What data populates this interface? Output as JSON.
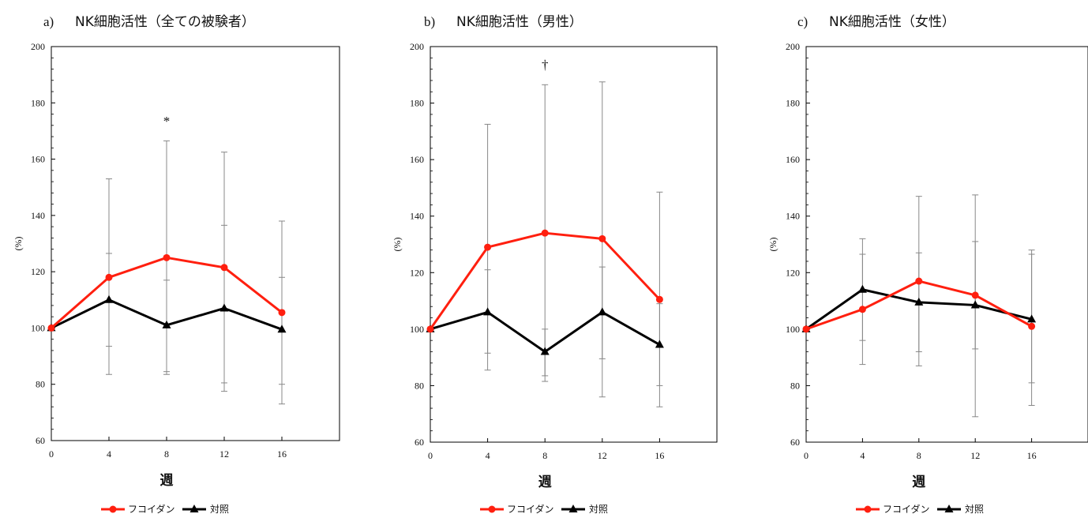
{
  "colors": {
    "fucoidan": "#ff1f0f",
    "control": "#000000",
    "error_bar": "#888888",
    "frame": "#000000"
  },
  "legend": {
    "fucoidan_label": "フコイダン",
    "control_label": "対照",
    "placement": "bottom-center"
  },
  "chart_data": [
    {
      "type": "line",
      "panel_letter": "a)",
      "title": "NK細胞活性（全ての被験者）",
      "xlabel": "週",
      "ylabel": "(%)",
      "xlim": [
        0,
        20
      ],
      "ylim": [
        60,
        200
      ],
      "x": [
        0,
        4,
        8,
        12,
        16
      ],
      "x_ticks": [
        "0",
        "4",
        "8",
        "12",
        "16"
      ],
      "y_ticks": [
        "60",
        "80",
        "100",
        "120",
        "140",
        "160",
        "180",
        "200"
      ],
      "annotations": [
        {
          "text": "*",
          "x": 8,
          "y": 172
        }
      ],
      "series": [
        {
          "name": "フコイダン",
          "marker": "circle",
          "values": [
            100,
            118,
            125,
            121.5,
            105.5
          ],
          "err_low": [
            100,
            93.5,
            83.5,
            80.5,
            73
          ],
          "err_high": [
            100,
            153,
            166.5,
            162.5,
            138
          ]
        },
        {
          "name": "対照",
          "marker": "triangle",
          "values": [
            100,
            110,
            101,
            107,
            99.5
          ],
          "err_low": [
            100,
            83.5,
            84.5,
            77.5,
            80
          ],
          "err_high": [
            100,
            126.5,
            117,
            136.5,
            118
          ]
        }
      ]
    },
    {
      "type": "line",
      "panel_letter": "b)",
      "title": "NK細胞活性（男性）",
      "xlabel": "週",
      "ylabel": "(%)",
      "xlim": [
        0,
        20
      ],
      "ylim": [
        60,
        200
      ],
      "x": [
        0,
        4,
        8,
        12,
        16
      ],
      "x_ticks": [
        "0",
        "4",
        "8",
        "12",
        "16"
      ],
      "y_ticks": [
        "60",
        "80",
        "100",
        "120",
        "140",
        "160",
        "180",
        "200"
      ],
      "annotations": [
        {
          "text": "†",
          "x": 8,
          "y": 192
        }
      ],
      "series": [
        {
          "name": "フコイダン",
          "marker": "circle",
          "values": [
            100,
            129,
            134,
            132,
            110.5
          ],
          "err_low": [
            100,
            85.5,
            81.5,
            76,
            72.5
          ],
          "err_high": [
            100,
            172.5,
            186.5,
            187.5,
            148.5
          ]
        },
        {
          "name": "対照",
          "marker": "triangle",
          "values": [
            100,
            106,
            92,
            106,
            94.5
          ],
          "err_low": [
            100,
            91.5,
            83.5,
            89.5,
            80
          ],
          "err_high": [
            100,
            121,
            100,
            122,
            109
          ]
        }
      ]
    },
    {
      "type": "line",
      "panel_letter": "c)",
      "title": "NK細胞活性（女性）",
      "xlabel": "週",
      "ylabel": "(%)",
      "xlim": [
        0,
        20
      ],
      "ylim": [
        60,
        200
      ],
      "x": [
        0,
        4,
        8,
        12,
        16
      ],
      "x_ticks": [
        "0",
        "4",
        "8",
        "12",
        "16"
      ],
      "y_ticks": [
        "60",
        "80",
        "100",
        "120",
        "140",
        "160",
        "180",
        "200"
      ],
      "annotations": [],
      "series": [
        {
          "name": "フコイダン",
          "marker": "circle",
          "values": [
            100,
            107,
            117,
            112,
            101
          ],
          "err_low": [
            100,
            87.5,
            87,
            69,
            73
          ],
          "err_high": [
            100,
            126.5,
            147,
            147.5,
            126.5
          ]
        },
        {
          "name": "対照",
          "marker": "triangle",
          "values": [
            100,
            114,
            109.5,
            108.5,
            103.5
          ],
          "err_low": [
            100,
            96,
            92,
            93,
            81
          ],
          "err_high": [
            100,
            132,
            127,
            131,
            128
          ]
        }
      ]
    }
  ]
}
